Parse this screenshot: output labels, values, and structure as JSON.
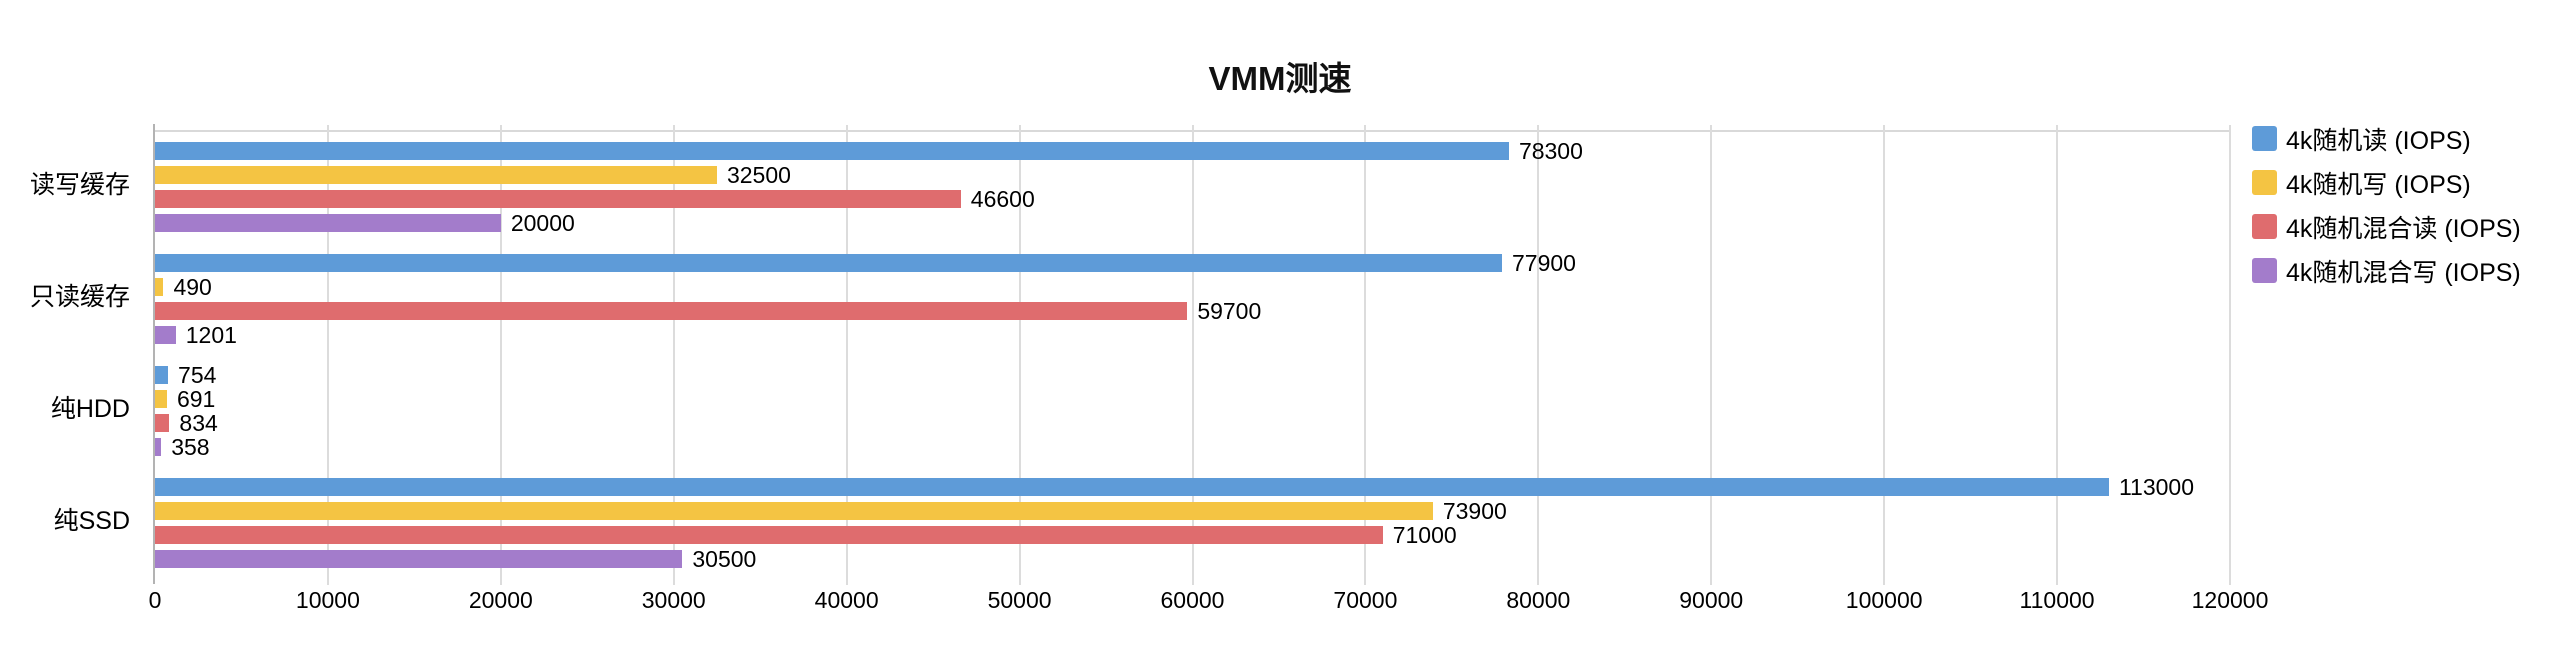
{
  "chart_data": {
    "type": "bar",
    "orientation": "horizontal",
    "title": "VMM测速",
    "categories": [
      "读写缓存",
      "只读缓存",
      "纯HDD",
      "纯SSD"
    ],
    "series": [
      {
        "name": "4k随机读 (IOPS)",
        "color": "#5e9bd8",
        "values": [
          78300,
          77900,
          754,
          113000
        ]
      },
      {
        "name": "4k随机写 (IOPS)",
        "color": "#f4c443",
        "values": [
          32500,
          490,
          691,
          73900
        ]
      },
      {
        "name": "4k随机混合读 (IOPS)",
        "color": "#df6c6e",
        "values": [
          46600,
          59700,
          834,
          71000
        ]
      },
      {
        "name": "4k随机混合写 (IOPS)",
        "color": "#a37ccb",
        "values": [
          20000,
          1201,
          358,
          30500
        ]
      }
    ],
    "xlim": [
      0,
      120000
    ],
    "x_ticks": [
      0,
      10000,
      20000,
      30000,
      40000,
      50000,
      60000,
      70000,
      80000,
      90000,
      100000,
      110000,
      120000
    ],
    "grid": true,
    "legend_position": "right",
    "style": {
      "gridline_color": "#dcdcdc",
      "axis_color": "#b3b3b3",
      "text_color": "#000000",
      "background": "#ffffff"
    }
  }
}
